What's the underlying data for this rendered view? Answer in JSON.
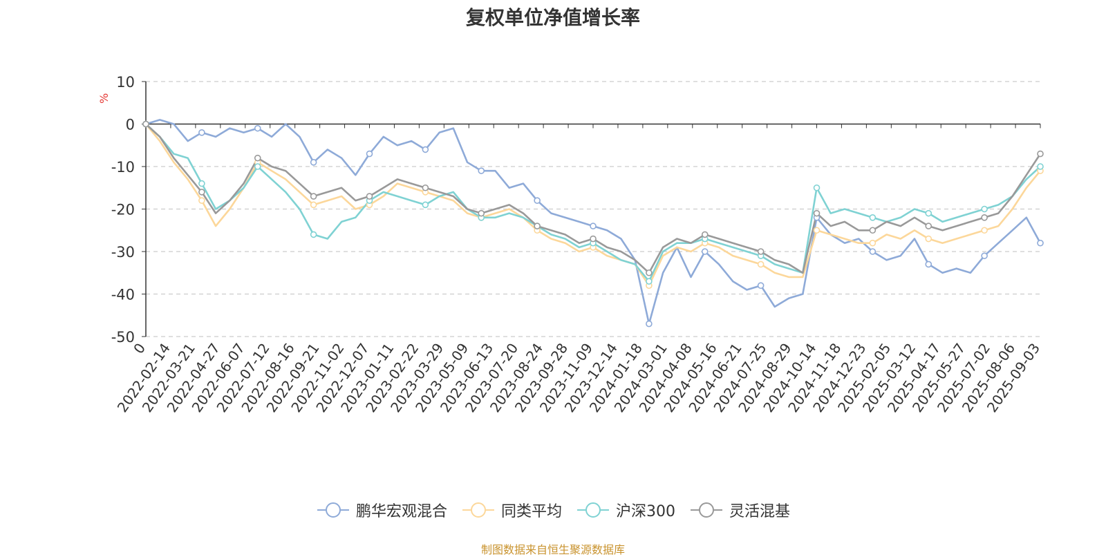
{
  "chart_data": {
    "type": "line",
    "title": "复权单位净值增长率",
    "ylabel": "%",
    "ylim": [
      -50,
      10
    ],
    "y_ticks": [
      10,
      0,
      -10,
      -20,
      -30,
      -40,
      -50
    ],
    "x_tick_labels": [
      "0",
      "2022-02-14",
      "2022-03-21",
      "2022-04-27",
      "2022-06-07",
      "2022-07-12",
      "2022-08-16",
      "2022-09-21",
      "2022-11-02",
      "2022-12-07",
      "2023-01-11",
      "2023-02-22",
      "2023-03-29",
      "2023-05-09",
      "2023-06-13",
      "2023-07-20",
      "2023-08-24",
      "2023-09-28",
      "2023-11-09",
      "2023-12-14",
      "2024-01-18",
      "2024-03-01",
      "2024-04-08",
      "2024-05-16",
      "2024-06-21",
      "2024-07-25",
      "2024-08-29",
      "2024-10-14",
      "2024-11-18",
      "2024-12-23",
      "2025-02-05",
      "2025-03-12",
      "2025-04-17",
      "2025-05-27",
      "2025-07-02",
      "2025-08-06",
      "2025-09-03"
    ],
    "grid": true,
    "legend_position": "bottom",
    "source": "制图数据来自恒生聚源数据库",
    "series": [
      {
        "name": "鹏华宏观混合",
        "color": "#8eaad8",
        "values": [
          0,
          1,
          0,
          -4,
          -2,
          -3,
          -1,
          -2,
          -1,
          -3,
          0,
          -3,
          -9,
          -6,
          -8,
          -12,
          -7,
          -3,
          -5,
          -4,
          -6,
          -2,
          -1,
          -9,
          -11,
          -11,
          -15,
          -14,
          -18,
          -21,
          -22,
          -23,
          -24,
          -25,
          -27,
          -32,
          -47,
          -35,
          -29,
          -36,
          -30,
          -33,
          -37,
          -39,
          -38,
          -43,
          -41,
          -40,
          -22,
          -26,
          -28,
          -27,
          -30,
          -32,
          -31,
          -27,
          -33,
          -35,
          -34,
          -35,
          -31,
          -28,
          -25,
          -22,
          -28
        ]
      },
      {
        "name": "同类平均",
        "color": "#fcd79a",
        "values": [
          0,
          -4,
          -9,
          -13,
          -18,
          -24,
          -20,
          -15,
          -9,
          -11,
          -13,
          -16,
          -19,
          -18,
          -17,
          -20,
          -19,
          -17,
          -14,
          -15,
          -16,
          -17,
          -18,
          -21,
          -22,
          -21,
          -20,
          -22,
          -25,
          -27,
          -28,
          -30,
          -29,
          -31,
          -32,
          -33,
          -38,
          -31,
          -29,
          -30,
          -28,
          -29,
          -31,
          -32,
          -33,
          -35,
          -36,
          -36,
          -25,
          -26,
          -27,
          -28,
          -28,
          -26,
          -27,
          -25,
          -27,
          -28,
          -27,
          -26,
          -25,
          -24,
          -20,
          -15,
          -11
        ]
      },
      {
        "name": "沪深300",
        "color": "#7fd2d3",
        "values": [
          0,
          -3,
          -7,
          -8,
          -14,
          -20,
          -18,
          -15,
          -10,
          -13,
          -16,
          -20,
          -26,
          -27,
          -23,
          -22,
          -18,
          -16,
          -17,
          -18,
          -19,
          -17,
          -16,
          -20,
          -22,
          -22,
          -21,
          -22,
          -24,
          -26,
          -27,
          -29,
          -28,
          -30,
          -32,
          -33,
          -37,
          -30,
          -28,
          -28,
          -27,
          -28,
          -29,
          -30,
          -31,
          -33,
          -34,
          -35,
          -15,
          -21,
          -20,
          -21,
          -22,
          -23,
          -22,
          -20,
          -21,
          -23,
          -22,
          -21,
          -20,
          -19,
          -17,
          -13,
          -10
        ]
      },
      {
        "name": "灵活混基",
        "color": "#999999",
        "values": [
          0,
          -3,
          -8,
          -12,
          -16,
          -21,
          -18,
          -14,
          -8,
          -10,
          -11,
          -14,
          -17,
          -16,
          -15,
          -18,
          -17,
          -15,
          -13,
          -14,
          -15,
          -16,
          -17,
          -20,
          -21,
          -20,
          -19,
          -21,
          -24,
          -25,
          -26,
          -28,
          -27,
          -29,
          -30,
          -32,
          -35,
          -29,
          -27,
          -28,
          -26,
          -27,
          -28,
          -29,
          -30,
          -32,
          -33,
          -35,
          -21,
          -24,
          -23,
          -25,
          -25,
          -23,
          -24,
          -22,
          -24,
          -25,
          -24,
          -23,
          -22,
          -21,
          -17,
          -12,
          -7
        ]
      }
    ]
  }
}
